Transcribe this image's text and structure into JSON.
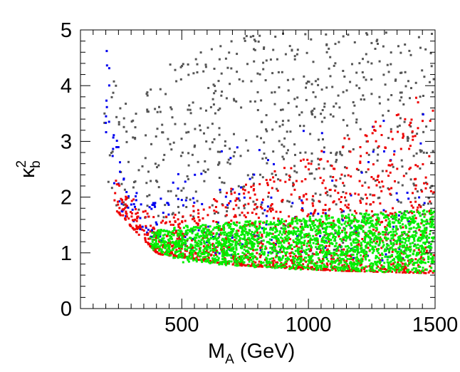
{
  "chart_data": {
    "type": "scatter",
    "title": "",
    "xlabel": {
      "main": "M",
      "sub": "A",
      "unit": " (GeV)"
    },
    "ylabel": {
      "main": "κ",
      "sub": "b",
      "sup": "2"
    },
    "xlim": [
      100,
      1500
    ],
    "ylim": [
      0,
      5
    ],
    "x_ticks": [
      500,
      1000,
      1500
    ],
    "y_ticks": [
      0,
      1,
      2,
      3,
      4,
      5
    ],
    "grid": false,
    "legend": "none",
    "series": [
      {
        "name": "gray points",
        "color": "#555555",
        "description": "broadly scattered, envelope upper region",
        "envelope": [
          [
            190,
            2.0,
            5.0
          ],
          [
            300,
            1.6,
            4.2
          ],
          [
            500,
            1.2,
            4.5
          ],
          [
            800,
            1.0,
            5.0
          ],
          [
            1200,
            1.0,
            5.0
          ],
          [
            1500,
            1.0,
            5.0
          ]
        ]
      },
      {
        "name": "blue points",
        "color": "#0000ee",
        "description": "steep low-mass edge and sparse high-mass scatter",
        "envelope": [
          [
            195,
            3.0,
            4.9
          ],
          [
            250,
            1.8,
            2.8
          ],
          [
            350,
            1.3,
            1.8
          ],
          [
            600,
            1.0,
            3.0
          ],
          [
            1500,
            0.8,
            3.6
          ]
        ]
      },
      {
        "name": "red points",
        "color": "#ee0000",
        "description": "dense band above green, sparse upward scatter",
        "envelope": [
          [
            230,
            1.8,
            2.4
          ],
          [
            400,
            1.0,
            1.6
          ],
          [
            700,
            0.8,
            2.2
          ],
          [
            1100,
            0.7,
            3.0
          ],
          [
            1500,
            0.65,
            4.0
          ]
        ]
      },
      {
        "name": "green points",
        "color": "#00ee00",
        "description": "dense band near kappa_b^2 ~ 1",
        "envelope": [
          [
            370,
            1.1,
            1.4
          ],
          [
            500,
            0.85,
            1.5
          ],
          [
            800,
            0.75,
            1.6
          ],
          [
            1100,
            0.7,
            1.7
          ],
          [
            1500,
            0.65,
            1.8
          ]
        ]
      }
    ]
  }
}
